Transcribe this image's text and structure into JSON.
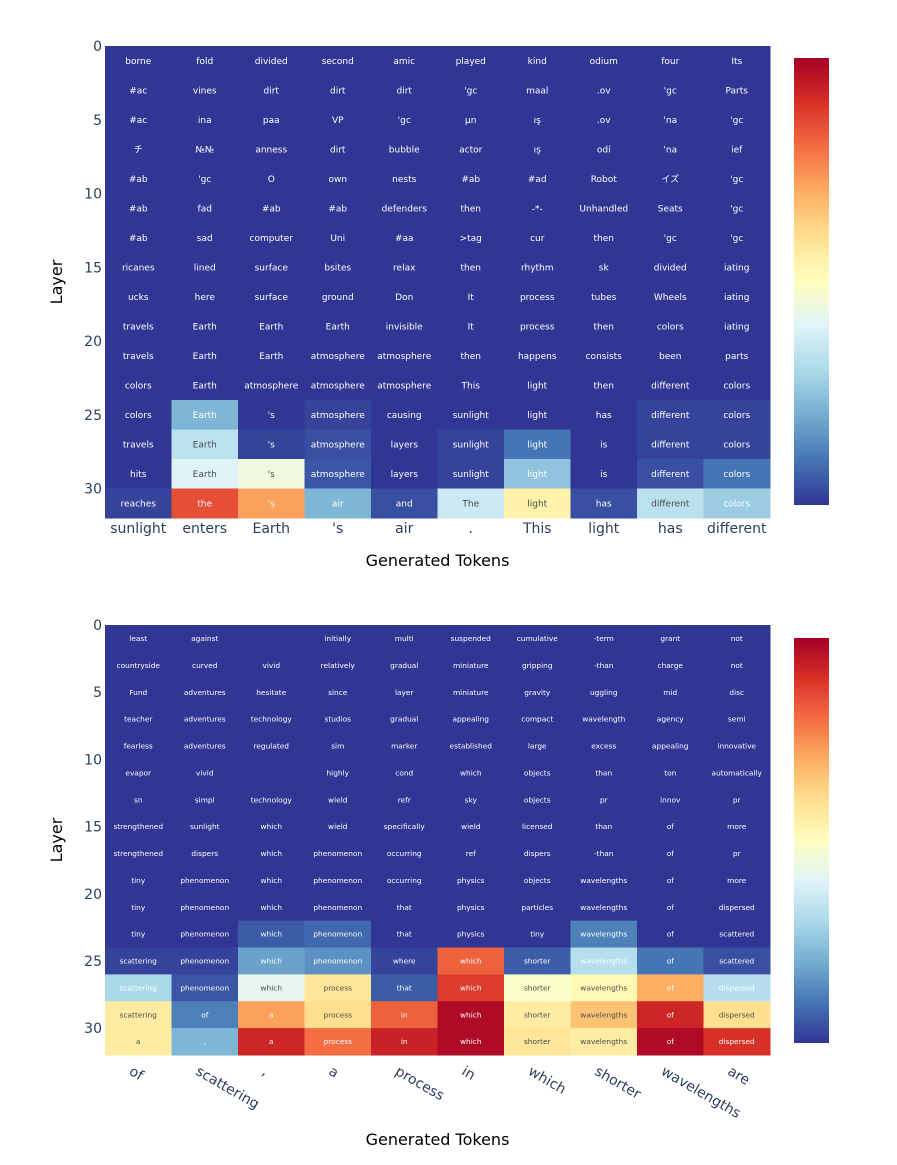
{
  "chart_data": [
    {
      "type": "heatmap",
      "xlabel": "Generated Tokens",
      "ylabel": "Layer",
      "y_ticks": [
        "0",
        "5",
        "10",
        "15",
        "20",
        "25",
        "30"
      ],
      "x_ticks": [
        "sunlight",
        "enters",
        "Earth",
        "'s",
        "air",
        ".",
        "This",
        "light",
        "has",
        "different"
      ],
      "rows": [
        {
          "layer": 1,
          "cells": [
            "borne",
            "fold",
            "divided",
            "second",
            "amic",
            "played",
            "kind",
            "odium",
            "four",
            "Its"
          ],
          "values": [
            0,
            0,
            0,
            0,
            0,
            0,
            0,
            0,
            0,
            0
          ]
        },
        {
          "layer": 3,
          "cells": [
            "#ac",
            "vines",
            "dirt",
            "dirt",
            "dirt",
            "'gc",
            "maal",
            ".ov",
            "'gc",
            "Parts"
          ],
          "values": [
            0,
            0,
            0,
            0,
            0,
            0,
            0,
            0,
            0,
            0
          ]
        },
        {
          "layer": 5,
          "cells": [
            "#ac",
            "ina",
            "paa",
            "VP",
            "'gc",
            "µn",
            "ış",
            ".ov",
            "'na",
            "'gc"
          ],
          "values": [
            0,
            0,
            0,
            0,
            0,
            0,
            0,
            0,
            0,
            0
          ]
        },
        {
          "layer": 7,
          "cells": [
            "チ",
            "№№",
            "anness",
            "dirt",
            "bubble",
            "actor",
            "ış",
            "odí",
            "'na",
            "ief"
          ],
          "values": [
            0,
            0,
            0,
            0,
            0,
            0,
            0,
            0,
            0,
            0
          ]
        },
        {
          "layer": 9,
          "cells": [
            "#ab",
            "'gc",
            "O",
            "own",
            "nests",
            "#ab",
            "#ad",
            "Robot",
            "イズ",
            "'gc"
          ],
          "values": [
            0,
            0,
            0,
            0,
            0,
            0,
            0,
            0,
            0,
            0
          ]
        },
        {
          "layer": 11,
          "cells": [
            "#ab",
            "fad",
            "#ab",
            "#ab",
            "defenders",
            "then",
            "-*-",
            "Unhandled",
            "Seats",
            "'gc"
          ],
          "values": [
            0,
            0,
            0,
            0,
            0,
            0,
            0,
            0,
            0,
            0
          ]
        },
        {
          "layer": 13,
          "cells": [
            "#ab",
            "sad",
            "computer",
            "Uni",
            "#aa",
            ">tag",
            "cur",
            "then",
            "'gc",
            "'gc"
          ],
          "values": [
            0,
            0,
            0,
            0,
            0,
            0,
            0,
            0,
            0,
            0
          ]
        },
        {
          "layer": 15,
          "cells": [
            "ricanes",
            "lined",
            "surface",
            "bsites",
            "relax",
            "then",
            "rhythm",
            "sk",
            "divided",
            "iating"
          ],
          "values": [
            0,
            0,
            0,
            0,
            0,
            0,
            0,
            0,
            0,
            0
          ]
        },
        {
          "layer": 17,
          "cells": [
            "ucks",
            "here",
            "surface",
            "ground",
            "Don",
            "It",
            "process",
            "tubes",
            "Wheels",
            "iating"
          ],
          "values": [
            0,
            0,
            0,
            0,
            0,
            0,
            0,
            0,
            0,
            0
          ]
        },
        {
          "layer": 19,
          "cells": [
            "travels",
            "Earth",
            "Earth",
            "Earth",
            "invisible",
            "It",
            "process",
            "then",
            "colors",
            "iating"
          ],
          "values": [
            0,
            0,
            0,
            0,
            0,
            0,
            0,
            0,
            0,
            0
          ]
        },
        {
          "layer": 21,
          "cells": [
            "travels",
            "Earth",
            "Earth",
            "atmosphere",
            "atmosphere",
            "then",
            "happens",
            "consists",
            "been",
            "parts"
          ],
          "values": [
            0,
            0,
            0,
            0,
            0,
            0,
            0,
            0,
            0,
            0
          ]
        },
        {
          "layer": 23,
          "cells": [
            "colors",
            "Earth",
            "atmosphere",
            "atmosphere",
            "atmosphere",
            "This",
            "light",
            "then",
            "different",
            "colors"
          ],
          "values": [
            0,
            0,
            0,
            0,
            0,
            0,
            0,
            0,
            0,
            0
          ]
        },
        {
          "layer": 25,
          "cells": [
            "colors",
            "Earth",
            "'s",
            "atmosphere",
            "causing",
            "sunlight",
            "light",
            "has",
            "different",
            "colors"
          ],
          "values": [
            0,
            0.22,
            0,
            0.02,
            0,
            0,
            0,
            0,
            0.02,
            0.02
          ]
        },
        {
          "layer": 27,
          "cells": [
            "travels",
            "Earth",
            "'s",
            "atmosphere",
            "layers",
            "sunlight",
            "light",
            "is",
            "different",
            "colors"
          ],
          "values": [
            0,
            0.33,
            0.02,
            0.04,
            0,
            0.02,
            0.1,
            0,
            0.02,
            0.02
          ]
        },
        {
          "layer": 29,
          "cells": [
            "hits",
            "Earth",
            "'s",
            "atmosphere",
            "layers",
            "sunlight",
            "light",
            "is",
            "different",
            "colors"
          ],
          "values": [
            0,
            0.4,
            0.45,
            0.05,
            0,
            0.02,
            0.25,
            0,
            0.04,
            0.1
          ]
        },
        {
          "layer": 31,
          "cells": [
            "reaches",
            "the",
            "'s",
            "air",
            "and",
            "The",
            "light",
            "has",
            "different",
            "colors"
          ],
          "values": [
            0.02,
            0.85,
            0.72,
            0.22,
            0.04,
            0.36,
            0.54,
            0.04,
            0.33,
            0.27
          ]
        }
      ]
    },
    {
      "type": "heatmap",
      "xlabel": "Generated Tokens",
      "ylabel": "Layer",
      "y_ticks": [
        "0",
        "5",
        "10",
        "15",
        "20",
        "25",
        "30"
      ],
      "x_ticks": [
        "of",
        "scattering",
        ",",
        "a",
        "process",
        "in",
        "which",
        "shorter",
        "wavelengths",
        "are"
      ],
      "rows": [
        {
          "layer": 1,
          "cells": [
            "least",
            "against",
            "",
            "initially",
            "multi",
            "suspended",
            "cumulative",
            "-term",
            "grant",
            "not"
          ],
          "values": [
            0,
            0,
            0,
            0,
            0,
            0,
            0,
            0,
            0,
            0
          ]
        },
        {
          "layer": 3,
          "cells": [
            "countryside",
            "curved",
            "vivid",
            "relatively",
            "gradual",
            "miniature",
            "gripping",
            "-than",
            "charge",
            "not"
          ],
          "values": [
            0,
            0,
            0,
            0,
            0,
            0,
            0,
            0,
            0,
            0
          ]
        },
        {
          "layer": 5,
          "cells": [
            "Fund",
            "adventures",
            "hesitate",
            "since",
            "layer",
            "miniature",
            "gravity",
            "uggling",
            "mid",
            "disc"
          ],
          "values": [
            0,
            0,
            0,
            0,
            0,
            0,
            0,
            0,
            0,
            0
          ]
        },
        {
          "layer": 7,
          "cells": [
            "teacher",
            "adventures",
            "technology",
            "studios",
            "gradual",
            "appealing",
            "compact",
            "wavelength",
            "agency",
            "semi"
          ],
          "values": [
            0,
            0,
            0,
            0,
            0,
            0,
            0,
            0,
            0,
            0
          ]
        },
        {
          "layer": 9,
          "cells": [
            "fearless",
            "adventures",
            "regulated",
            "sim",
            "marker",
            "established",
            "large",
            "excess",
            "appealing",
            "innovative"
          ],
          "values": [
            0,
            0,
            0,
            0,
            0,
            0,
            0,
            0,
            0,
            0
          ]
        },
        {
          "layer": 11,
          "cells": [
            "evapor",
            "vivid",
            "",
            "highly",
            "cond",
            "which",
            "objects",
            "than",
            "ton",
            "automatically"
          ],
          "values": [
            0,
            0,
            0,
            0,
            0,
            0,
            0,
            0,
            0,
            0
          ]
        },
        {
          "layer": 13,
          "cells": [
            "sn",
            "simpl",
            "technology",
            "wield",
            "refr",
            "sky",
            "objects",
            "pr",
            "innov",
            "pr"
          ],
          "values": [
            0,
            0,
            0,
            0,
            0,
            0,
            0,
            0,
            0,
            0
          ]
        },
        {
          "layer": 15,
          "cells": [
            "strengthened",
            "sunlight",
            "which",
            "wield",
            "specifically",
            "wield",
            "licensed",
            "than",
            "of",
            "more"
          ],
          "values": [
            0,
            0,
            0,
            0,
            0,
            0,
            0,
            0,
            0,
            0
          ]
        },
        {
          "layer": 17,
          "cells": [
            "strengthened",
            "dispers",
            "which",
            "phenomenon",
            "occurring",
            "ref",
            "dispers",
            "-than",
            "of",
            "pr"
          ],
          "values": [
            0,
            0,
            0,
            0,
            0,
            0,
            0,
            0,
            0,
            0
          ]
        },
        {
          "layer": 19,
          "cells": [
            "tiny",
            "phenomenon",
            "which",
            "phenomenon",
            "occurring",
            "physics",
            "objects",
            "wavelengths",
            "of",
            "more"
          ],
          "values": [
            0,
            0,
            0,
            0,
            0,
            0,
            0,
            0,
            0,
            0
          ]
        },
        {
          "layer": 21,
          "cells": [
            "tiny",
            "phenomenon",
            "which",
            "phenomenon",
            "that",
            "physics",
            "particles",
            "wavelengths",
            "of",
            "dispersed"
          ],
          "values": [
            0,
            0,
            0,
            0,
            0,
            0,
            0,
            0,
            0,
            0
          ]
        },
        {
          "layer": 23,
          "cells": [
            "tiny",
            "phenomenon",
            "which",
            "phenomenon",
            "that",
            "physics",
            "tiny",
            "wavelengths",
            "of",
            "scattered"
          ],
          "values": [
            0,
            0,
            0.06,
            0.08,
            0,
            0,
            0,
            0.12,
            0,
            0
          ]
        },
        {
          "layer": 25,
          "cells": [
            "scattering",
            "phenomenon",
            "which",
            "phenomenon",
            "where",
            "which",
            "shorter",
            "wavelengths",
            "of",
            "scattered"
          ],
          "values": [
            0.02,
            0.02,
            0.18,
            0.15,
            0.02,
            0.82,
            0.06,
            0.32,
            0.1,
            0.04
          ]
        },
        {
          "layer": 27,
          "cells": [
            "scattering",
            "phenomenon",
            "which",
            "process",
            "that",
            "which",
            "shorter",
            "wavelengths",
            "of",
            "dispersed"
          ],
          "values": [
            0.3,
            0.05,
            0.42,
            0.58,
            0.06,
            0.88,
            0.48,
            0.52,
            0.7,
            0.32
          ]
        },
        {
          "layer": 29,
          "cells": [
            "scattering",
            "of",
            "a",
            "process",
            "in",
            "which",
            "shorter",
            "wavelengths",
            "of",
            "dispersed"
          ],
          "values": [
            0.56,
            0.12,
            0.72,
            0.6,
            0.82,
            0.98,
            0.56,
            0.66,
            0.92,
            0.6
          ]
        },
        {
          "layer": 31,
          "cells": [
            "a",
            ",",
            "a",
            "process",
            "in",
            "which",
            "shorter",
            "wavelengths",
            "of",
            "dispersed"
          ],
          "values": [
            0.56,
            0.22,
            0.92,
            0.8,
            0.93,
            0.98,
            0.58,
            0.56,
            0.98,
            0.9
          ]
        }
      ]
    }
  ]
}
